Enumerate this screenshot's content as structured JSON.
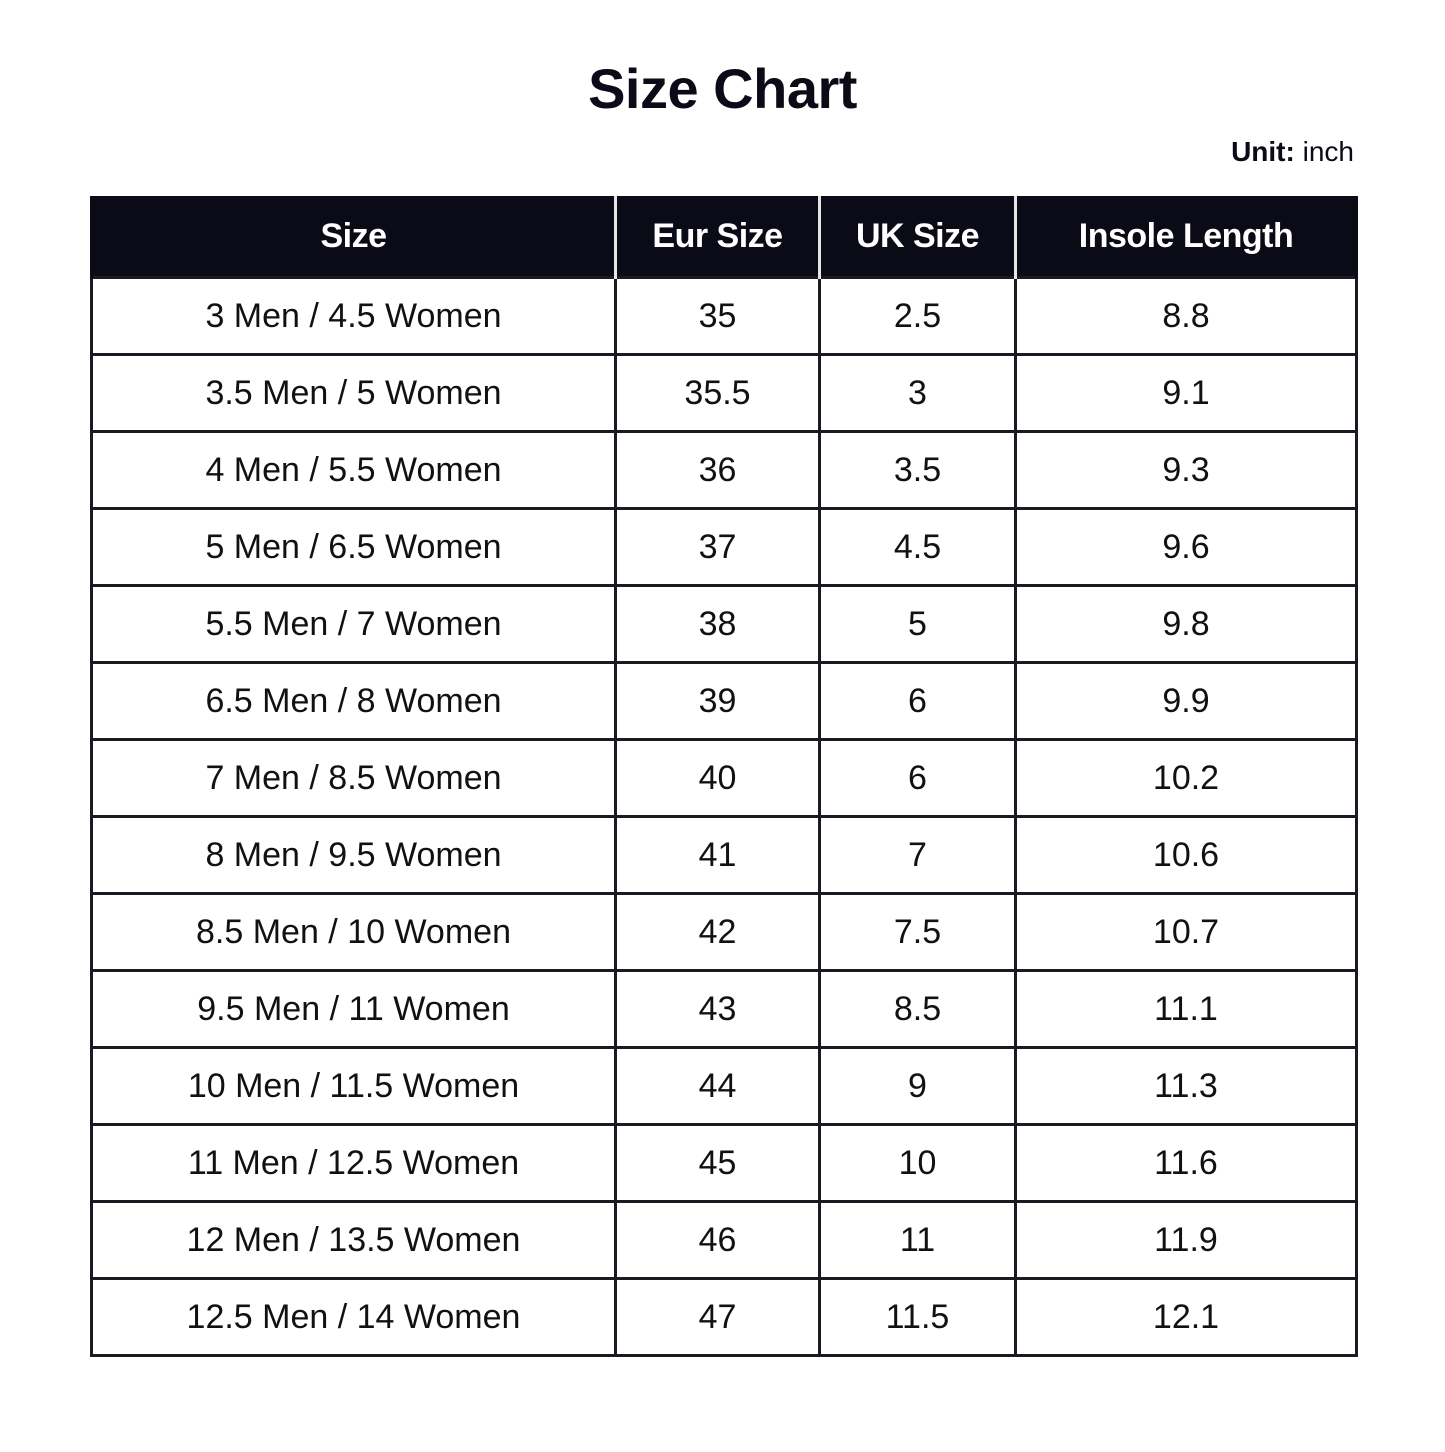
{
  "title": "Size Chart",
  "unit": {
    "label": "Unit:",
    "value": "inch"
  },
  "table": {
    "headers": [
      "Size",
      "Eur Size",
      "UK Size",
      "Insole Length"
    ],
    "rows": [
      [
        "3 Men / 4.5 Women",
        "35",
        "2.5",
        "8.8"
      ],
      [
        "3.5 Men / 5 Women",
        "35.5",
        "3",
        "9.1"
      ],
      [
        "4 Men / 5.5 Women",
        "36",
        "3.5",
        "9.3"
      ],
      [
        "5 Men / 6.5 Women",
        "37",
        "4.5",
        "9.6"
      ],
      [
        "5.5 Men / 7 Women",
        "38",
        "5",
        "9.8"
      ],
      [
        "6.5 Men / 8 Women",
        "39",
        "6",
        "9.9"
      ],
      [
        "7 Men / 8.5 Women",
        "40",
        "6",
        "10.2"
      ],
      [
        "8 Men / 9.5 Women",
        "41",
        "7",
        "10.6"
      ],
      [
        "8.5 Men / 10 Women",
        "42",
        "7.5",
        "10.7"
      ],
      [
        "9.5 Men / 11 Women",
        "43",
        "8.5",
        "11.1"
      ],
      [
        "10 Men / 11.5 Women",
        "44",
        "9",
        "11.3"
      ],
      [
        "11 Men / 12.5 Women",
        "45",
        "10",
        "11.6"
      ],
      [
        "12 Men / 13.5 Women",
        "46",
        "11",
        "11.9"
      ],
      [
        "12.5 Men / 14 Women",
        "47",
        "11.5",
        "12.1"
      ]
    ]
  },
  "colors": {
    "header_bg": "#0b0b17",
    "header_text": "#ffffff"
  }
}
